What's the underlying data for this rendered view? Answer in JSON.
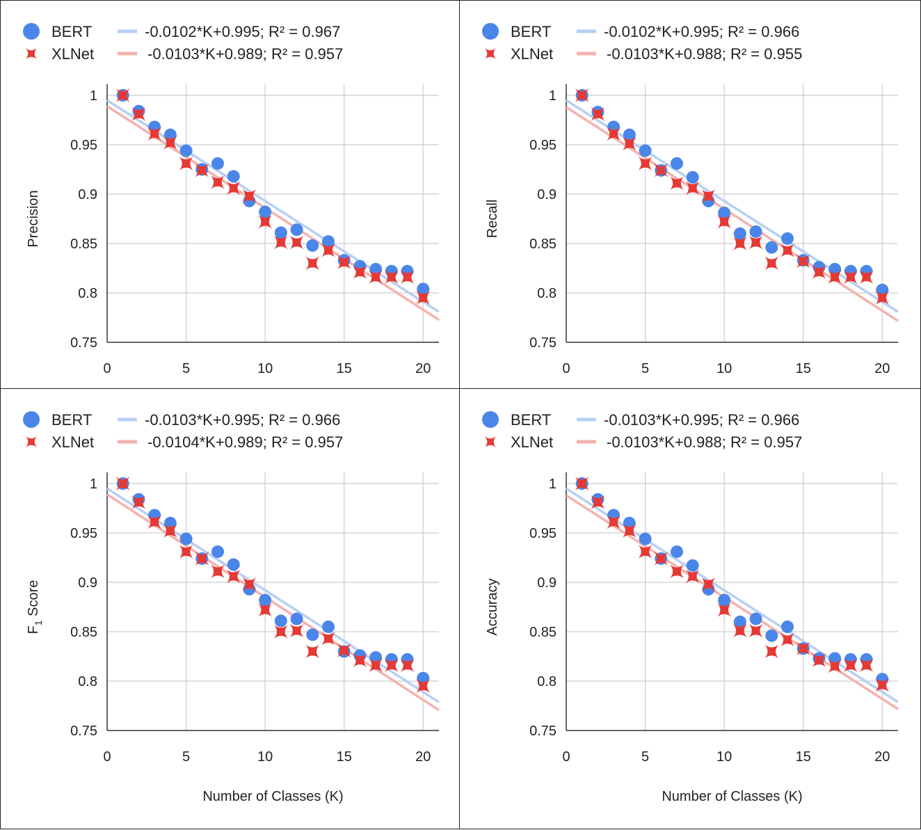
{
  "colors": {
    "bert_marker": "#4a86e8",
    "xlnet_marker": "#e53935",
    "bert_trend": "#b7cff5",
    "xlnet_trend": "#f4b2ae",
    "grid": "#cccccc",
    "axis": "#333333",
    "text": "#222222"
  },
  "chart_data": [
    {
      "type": "scatter",
      "ylabel": "Precision",
      "xlabel": "",
      "xlim": [
        0,
        21
      ],
      "ylim": [
        0.75,
        1.0
      ],
      "xticks": [
        "0",
        "5",
        "10",
        "15",
        "20"
      ],
      "yticks": [
        "0.75",
        "0.8",
        "0.85",
        "0.9",
        "0.95",
        "1"
      ],
      "grid": true,
      "legend_position": "top",
      "series": [
        {
          "name": "BERT",
          "marker": "circle",
          "x": [
            1,
            2,
            3,
            4,
            5,
            6,
            7,
            8,
            9,
            10,
            11,
            12,
            13,
            14,
            15,
            16,
            17,
            18,
            19,
            20
          ],
          "y": [
            1.0,
            0.984,
            0.968,
            0.96,
            0.944,
            0.925,
            0.931,
            0.918,
            0.893,
            0.882,
            0.861,
            0.864,
            0.848,
            0.852,
            0.833,
            0.827,
            0.824,
            0.822,
            0.822,
            0.804
          ],
          "trendline": {
            "label": "-0.0102*K+0.995; R² = 0.967",
            "slope": -0.0102,
            "intercept": 0.995
          }
        },
        {
          "name": "XLNet",
          "marker": "x",
          "x": [
            1,
            2,
            3,
            4,
            5,
            6,
            7,
            8,
            9,
            10,
            11,
            12,
            13,
            14,
            15,
            16,
            17,
            18,
            19,
            20
          ],
          "y": [
            1.0,
            0.981,
            0.961,
            0.952,
            0.931,
            0.924,
            0.912,
            0.906,
            0.898,
            0.872,
            0.851,
            0.851,
            0.83,
            0.843,
            0.831,
            0.821,
            0.816,
            0.816,
            0.816,
            0.795
          ],
          "trendline": {
            "label": "-0.0103*K+0.989; R² = 0.957",
            "slope": -0.0103,
            "intercept": 0.989
          }
        }
      ]
    },
    {
      "type": "scatter",
      "ylabel": "Recall",
      "xlabel": "",
      "xlim": [
        0,
        21
      ],
      "ylim": [
        0.75,
        1.0
      ],
      "xticks": [
        "0",
        "5",
        "10",
        "15",
        "20"
      ],
      "yticks": [
        "0.75",
        "0.8",
        "0.85",
        "0.9",
        "0.95",
        "1"
      ],
      "grid": true,
      "legend_position": "top",
      "series": [
        {
          "name": "BERT",
          "marker": "circle",
          "x": [
            1,
            2,
            3,
            4,
            5,
            6,
            7,
            8,
            9,
            10,
            11,
            12,
            13,
            14,
            15,
            16,
            17,
            18,
            19,
            20
          ],
          "y": [
            1.0,
            0.983,
            0.968,
            0.96,
            0.944,
            0.924,
            0.931,
            0.917,
            0.893,
            0.881,
            0.86,
            0.862,
            0.846,
            0.855,
            0.833,
            0.826,
            0.824,
            0.822,
            0.822,
            0.803
          ],
          "trendline": {
            "label": "-0.0102*K+0.995; R² = 0.966",
            "slope": -0.0102,
            "intercept": 0.995
          }
        },
        {
          "name": "XLNet",
          "marker": "x",
          "x": [
            1,
            2,
            3,
            4,
            5,
            6,
            7,
            8,
            9,
            10,
            11,
            12,
            13,
            14,
            15,
            16,
            17,
            18,
            19,
            20
          ],
          "y": [
            1.0,
            0.981,
            0.961,
            0.951,
            0.931,
            0.924,
            0.911,
            0.906,
            0.898,
            0.872,
            0.85,
            0.851,
            0.83,
            0.843,
            0.832,
            0.821,
            0.816,
            0.816,
            0.816,
            0.795
          ],
          "trendline": {
            "label": "-0.0103*K+0.988; R² = 0.955",
            "slope": -0.0103,
            "intercept": 0.988
          }
        }
      ]
    },
    {
      "type": "scatter",
      "ylabel": "F",
      "ylabel_subscript": "1",
      "ylabel_suffix": " Score",
      "xlabel": "Number of Classes (K)",
      "xlim": [
        0,
        21
      ],
      "ylim": [
        0.75,
        1.0
      ],
      "xticks": [
        "0",
        "5",
        "10",
        "15",
        "20"
      ],
      "yticks": [
        "0.75",
        "0.8",
        "0.85",
        "0.9",
        "0.95",
        "1"
      ],
      "grid": true,
      "legend_position": "top",
      "series": [
        {
          "name": "BERT",
          "marker": "circle",
          "x": [
            1,
            2,
            3,
            4,
            5,
            6,
            7,
            8,
            9,
            10,
            11,
            12,
            13,
            14,
            15,
            16,
            17,
            18,
            19,
            20
          ],
          "y": [
            1.0,
            0.984,
            0.968,
            0.96,
            0.944,
            0.924,
            0.931,
            0.918,
            0.893,
            0.882,
            0.861,
            0.863,
            0.847,
            0.855,
            0.83,
            0.826,
            0.824,
            0.822,
            0.822,
            0.803
          ],
          "trendline": {
            "label": "-0.0103*K+0.995; R² = 0.966",
            "slope": -0.0103,
            "intercept": 0.995
          }
        },
        {
          "name": "XLNet",
          "marker": "x",
          "x": [
            1,
            2,
            3,
            4,
            5,
            6,
            7,
            8,
            9,
            10,
            11,
            12,
            13,
            14,
            15,
            16,
            17,
            18,
            19,
            20
          ],
          "y": [
            1.0,
            0.981,
            0.961,
            0.952,
            0.931,
            0.924,
            0.911,
            0.906,
            0.898,
            0.872,
            0.85,
            0.851,
            0.83,
            0.843,
            0.831,
            0.821,
            0.816,
            0.816,
            0.816,
            0.795
          ],
          "trendline": {
            "label": "-0.0104*K+0.989; R² = 0.957",
            "slope": -0.0104,
            "intercept": 0.989
          }
        }
      ]
    },
    {
      "type": "scatter",
      "ylabel": "Accuracy",
      "xlabel": "Number of Classes (K)",
      "xlim": [
        0,
        21
      ],
      "ylim": [
        0.75,
        1.0
      ],
      "xticks": [
        "0",
        "5",
        "10",
        "15",
        "20"
      ],
      "yticks": [
        "0.75",
        "0.8",
        "0.85",
        "0.9",
        "0.95",
        "1"
      ],
      "grid": true,
      "legend_position": "top",
      "series": [
        {
          "name": "BERT",
          "marker": "circle",
          "x": [
            1,
            2,
            3,
            4,
            5,
            6,
            7,
            8,
            9,
            10,
            11,
            12,
            13,
            14,
            15,
            16,
            17,
            18,
            19,
            20
          ],
          "y": [
            1.0,
            0.984,
            0.968,
            0.96,
            0.944,
            0.924,
            0.931,
            0.917,
            0.893,
            0.882,
            0.86,
            0.863,
            0.846,
            0.855,
            0.833,
            0.823,
            0.823,
            0.822,
            0.822,
            0.802
          ],
          "trendline": {
            "label": "-0.0103*K+0.995; R² = 0.966",
            "slope": -0.0103,
            "intercept": 0.995
          }
        },
        {
          "name": "XLNet",
          "marker": "x",
          "x": [
            1,
            2,
            3,
            4,
            5,
            6,
            7,
            8,
            9,
            10,
            11,
            12,
            13,
            14,
            15,
            16,
            17,
            18,
            19,
            20
          ],
          "y": [
            1.0,
            0.981,
            0.961,
            0.952,
            0.931,
            0.924,
            0.911,
            0.906,
            0.898,
            0.872,
            0.851,
            0.851,
            0.83,
            0.842,
            0.833,
            0.821,
            0.815,
            0.816,
            0.816,
            0.796
          ],
          "trendline": {
            "label": "-0.0103*K+0.988; R² = 0.957",
            "slope": -0.0103,
            "intercept": 0.988
          }
        }
      ]
    }
  ]
}
